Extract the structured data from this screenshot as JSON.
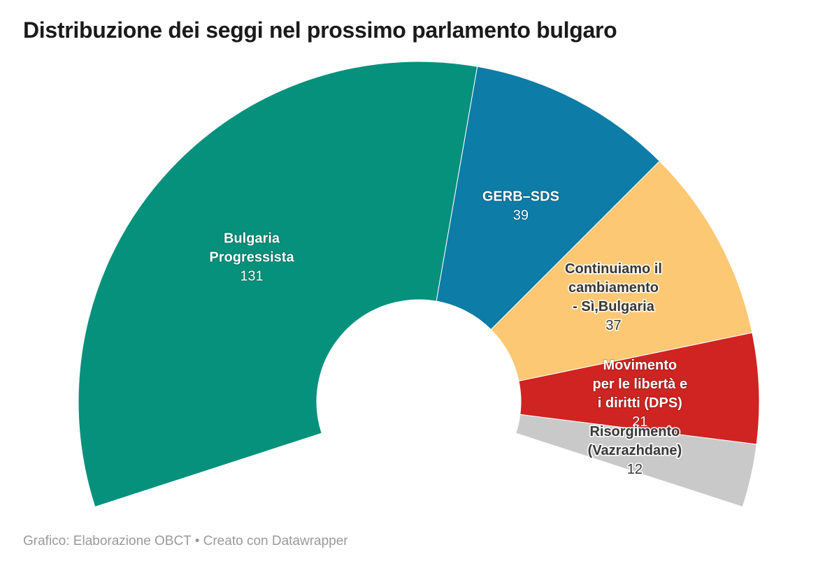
{
  "header": {
    "title": "Distribuzione dei seggi nel prossimo parlamento bulgaro"
  },
  "chart_data": {
    "type": "pie",
    "variant": "half-donut-hemicycle",
    "title": "Distribuzione dei seggi nel prossimo parlamento bulgaro",
    "total": 240,
    "span_degrees": 216,
    "inner_radius_ratio": 0.3,
    "legend_position": "labels-inside-segments",
    "background_color": "#ffffff",
    "series": [
      {
        "name": "Bulgaria Progressista",
        "value": 131,
        "color": "#06917c",
        "text_color": "#ffffff",
        "label_lines": [
          "Bulgaria",
          "Progressista"
        ]
      },
      {
        "name": "GERB–SDS",
        "value": 39,
        "color": "#0d7ca6",
        "text_color": "#ffffff",
        "label_lines": [
          "GERB–SDS"
        ]
      },
      {
        "name": "Continuiamo il cambiamento - Sì,Bulgaria",
        "value": 37,
        "color": "#fdc873",
        "text_color": "#383838",
        "label_lines": [
          "Continuiamo il",
          "cambiamento",
          "- Sì,Bulgaria"
        ]
      },
      {
        "name": "Movimento per le libertà e i diritti (DPS)",
        "value": 21,
        "color": "#cf2421",
        "text_color": "#ffffff",
        "label_lines": [
          "Movimento",
          "per le libertà e",
          "i diritti (DPS)"
        ]
      },
      {
        "name": "Risorgimento (Vazrazhdane)",
        "value": 12,
        "color": "#c9c9c9",
        "text_color": "#383838",
        "label_lines": [
          "Risorgimento",
          "(Vazrazhdane)"
        ]
      }
    ]
  },
  "footer": {
    "attribution": "Grafico: Elaborazione OBCT • Creato con Datawrapper"
  }
}
